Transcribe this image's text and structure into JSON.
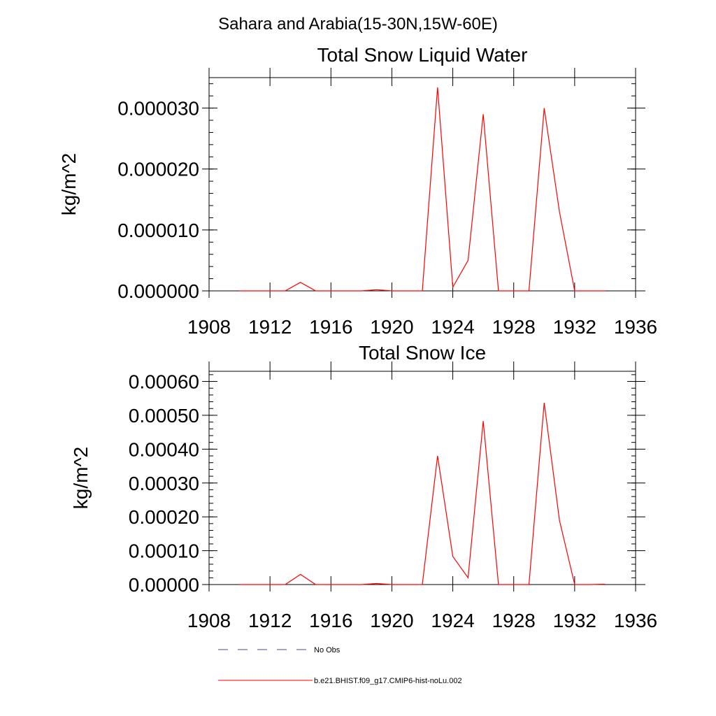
{
  "figure": {
    "region_title": "Sahara and Arabia(15-30N,15W-60E)"
  },
  "chart_data": [
    {
      "type": "line",
      "title": "Total Snow Liquid Water",
      "xlabel": "",
      "ylabel": "kg/m^2",
      "xlim": [
        1908,
        1936
      ],
      "ylim": [
        0,
        3.5e-05
      ],
      "grid": false,
      "x_ticks": [
        1908,
        1912,
        1916,
        1920,
        1924,
        1928,
        1932,
        1936
      ],
      "x_tick_labels": [
        "1908",
        "1912",
        "1916",
        "1920",
        "1924",
        "1928",
        "1932",
        "1936"
      ],
      "y_ticks": [
        0,
        1e-05,
        2e-05,
        3e-05
      ],
      "y_tick_labels": [
        "0.000000",
        "0.000010",
        "0.000020",
        "0.000030"
      ],
      "series": [
        {
          "name": "b.e21.BHIST.f09_g17.CMIP6-hist-noLu.002",
          "color": "#ff0000",
          "x": [
            1910,
            1911,
            1912,
            1913,
            1914,
            1915,
            1916,
            1917,
            1918,
            1919,
            1920,
            1921,
            1922,
            1923,
            1924,
            1925,
            1926,
            1927,
            1928,
            1929,
            1930,
            1931,
            1932,
            1933,
            1934
          ],
          "y": [
            0,
            0,
            0,
            0,
            1.4e-06,
            0,
            0,
            0,
            0,
            2e-07,
            0,
            0,
            0,
            3.34e-05,
            6e-07,
            5e-06,
            2.9e-05,
            0,
            0,
            0,
            3e-05,
            1.3e-05,
            0,
            0,
            0
          ]
        }
      ]
    },
    {
      "type": "line",
      "title": "Total Snow Ice",
      "xlabel": "",
      "ylabel": "kg/m^2",
      "xlim": [
        1908,
        1936
      ],
      "ylim": [
        0,
        0.00063
      ],
      "grid": false,
      "x_ticks": [
        1908,
        1912,
        1916,
        1920,
        1924,
        1928,
        1932,
        1936
      ],
      "x_tick_labels": [
        "1908",
        "1912",
        "1916",
        "1920",
        "1924",
        "1928",
        "1932",
        "1936"
      ],
      "y_ticks": [
        0,
        0.0001,
        0.0002,
        0.0003,
        0.0004,
        0.0005,
        0.0006
      ],
      "y_tick_labels": [
        "0.00000",
        "0.00010",
        "0.00020",
        "0.00030",
        "0.00040",
        "0.00050",
        "0.00060"
      ],
      "series": [
        {
          "name": "b.e21.BHIST.f09_g17.CMIP6-hist-noLu.002",
          "color": "#ff0000",
          "x": [
            1910,
            1911,
            1912,
            1913,
            1914,
            1915,
            1916,
            1917,
            1918,
            1919,
            1920,
            1921,
            1922,
            1923,
            1924,
            1925,
            1926,
            1927,
            1928,
            1929,
            1930,
            1931,
            1932,
            1933,
            1934
          ],
          "y": [
            0,
            0,
            0,
            0,
            3e-05,
            0,
            0,
            0,
            0,
            3e-06,
            0,
            0,
            0,
            0.00038,
            8.3e-05,
            2e-05,
            0.000483,
            0,
            0,
            0,
            0.000537,
            0.00019,
            0,
            0,
            1e-06
          ]
        }
      ]
    }
  ],
  "legend": {
    "placement": "bottom-left",
    "items": [
      {
        "label": "No Obs",
        "color": "#4a4a7a",
        "style": "dashed"
      },
      {
        "label": "b.e21.BHIST.f09_g17.CMIP6-hist-noLu.002",
        "color": "#ff0000",
        "style": "solid"
      }
    ]
  }
}
